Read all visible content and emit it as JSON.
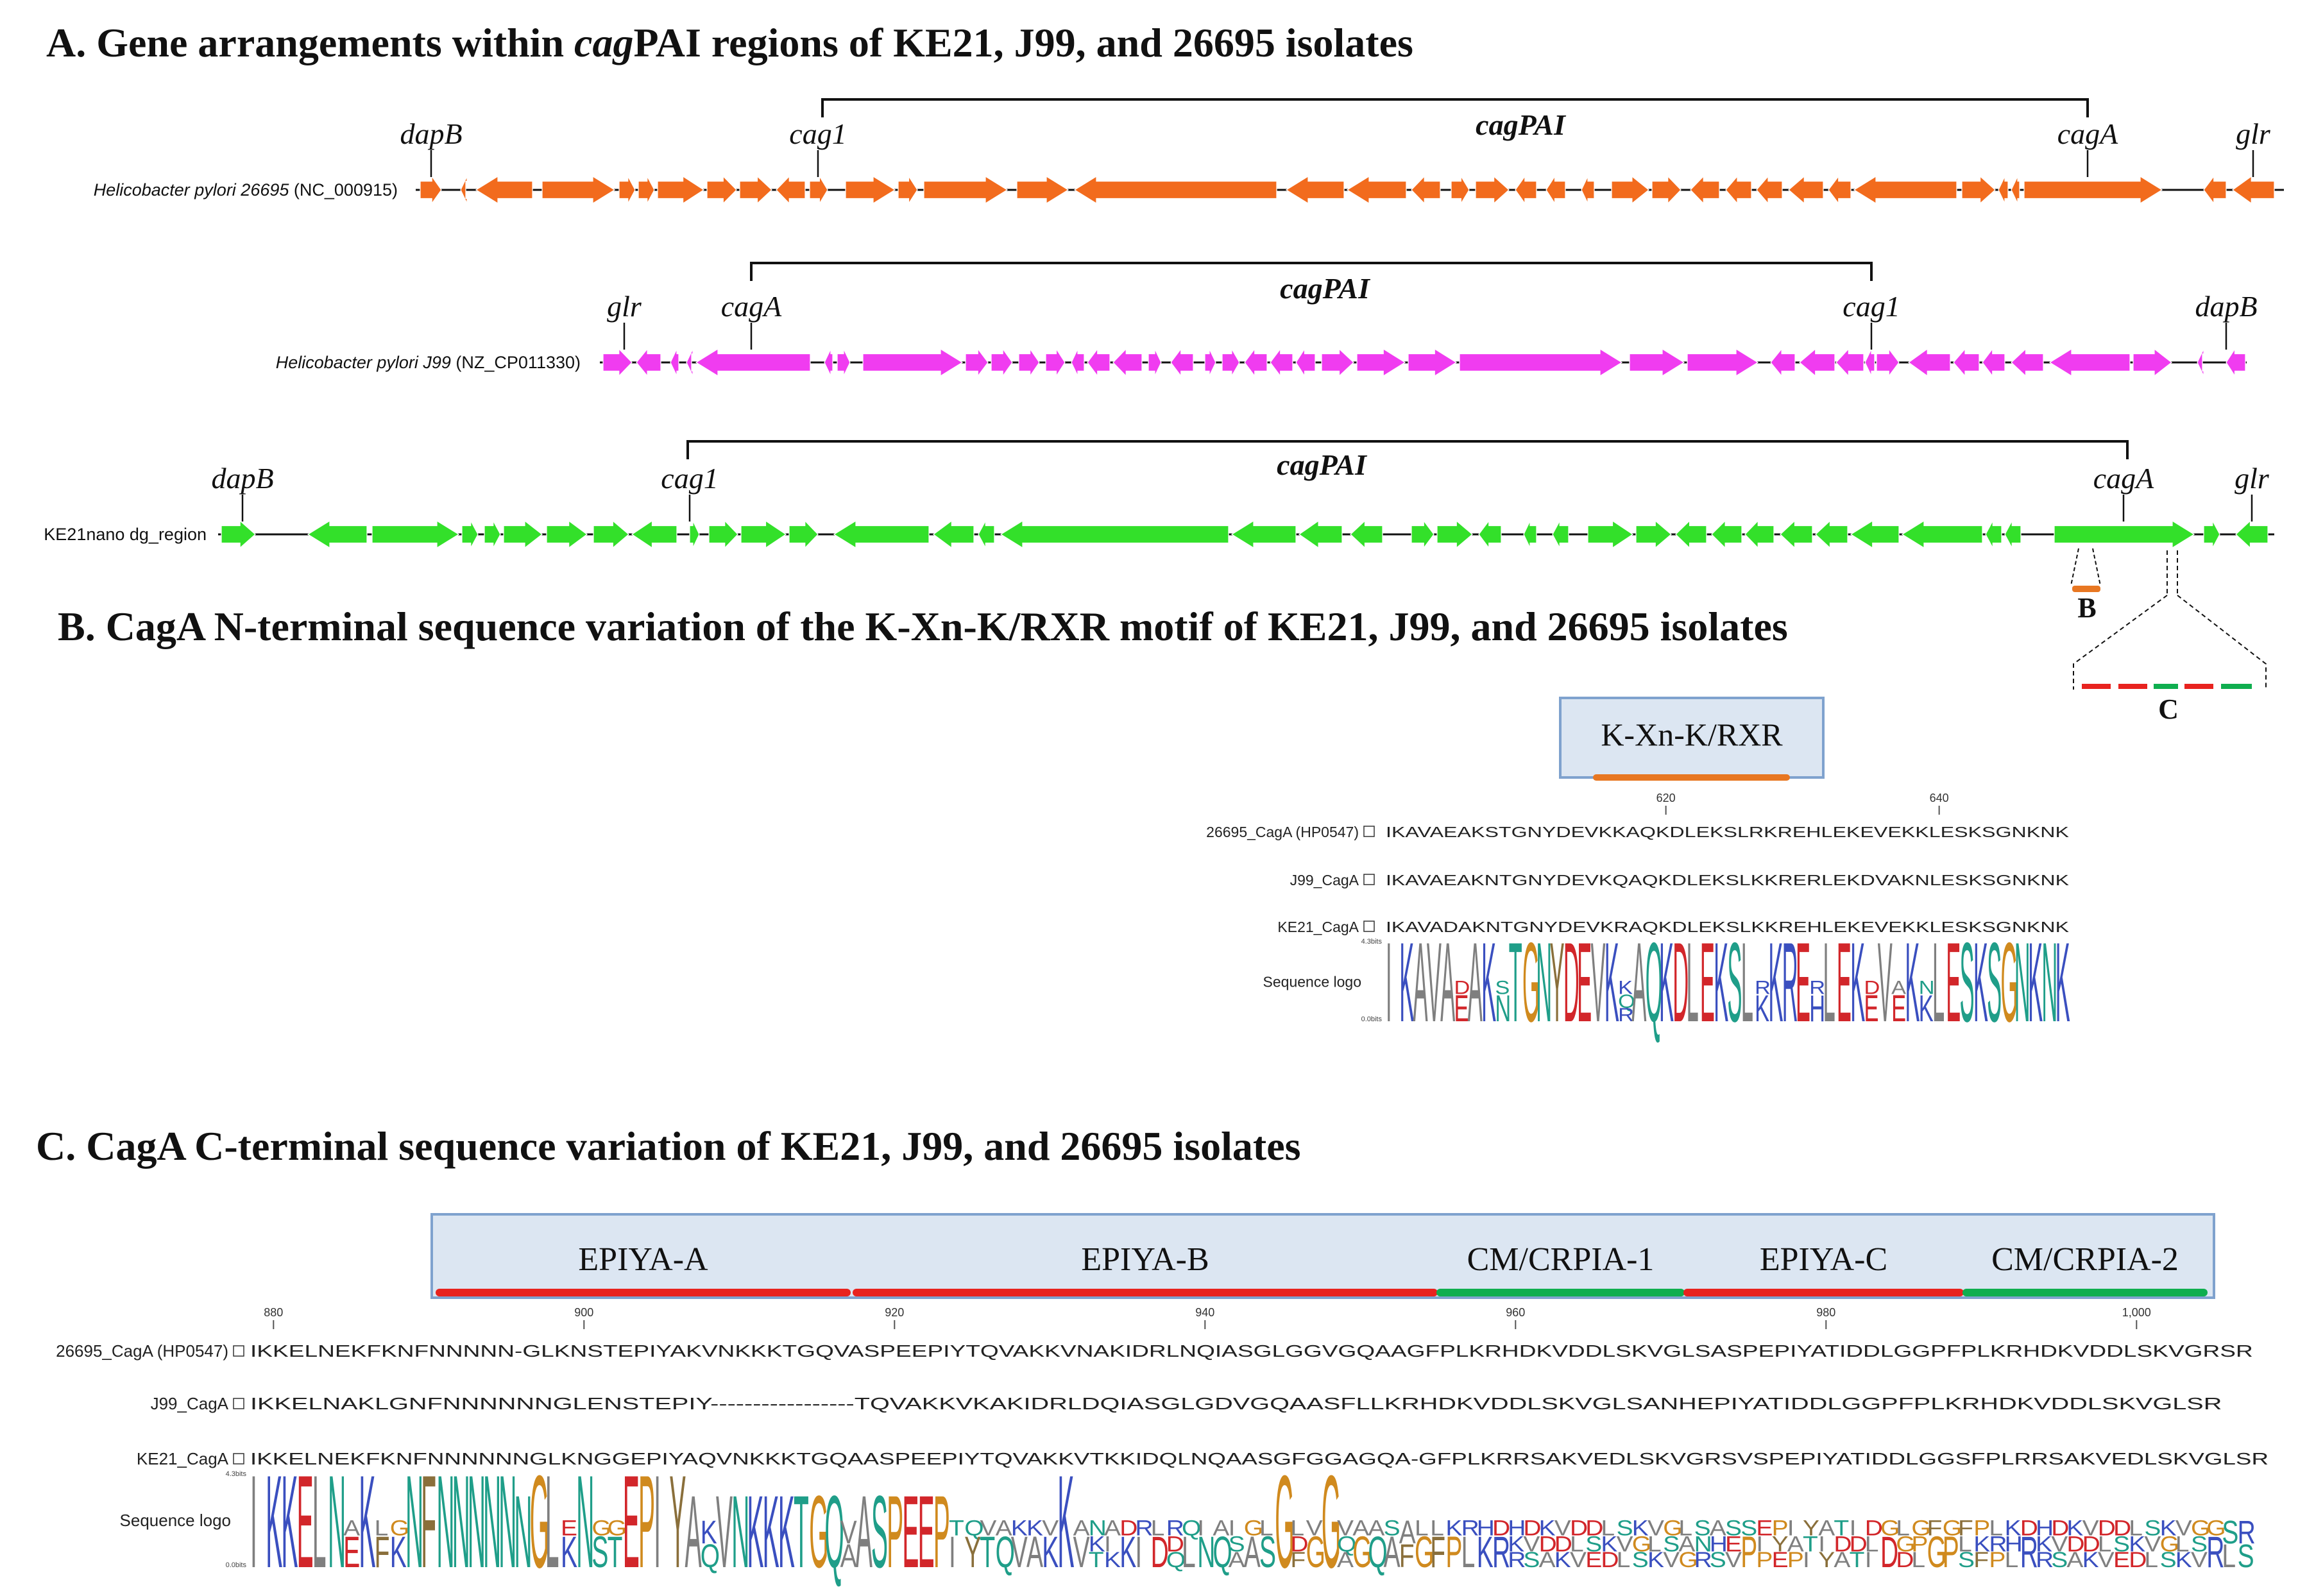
{
  "sectionA": {
    "heading_prefix": "A. Gene arrangements within ",
    "heading_italic": "cag",
    "heading_suffix": "PAI regions of KE21, J99, and 26695 isolates",
    "region_label": "cagPAI",
    "tracks": [
      {
        "genome_italic": "Helicobacter pylori 26695",
        "genome_id": "(NC_000915)",
        "color": "#F26B1D",
        "gene_labels": [
          "dapB",
          "cag1",
          "cagA",
          "glr"
        ]
      },
      {
        "genome_italic": "Helicobacter pylori J99",
        "genome_id": "(NZ_CP011330)",
        "color": "#F03CF0",
        "gene_labels": [
          "glr",
          "cagA",
          "cag1",
          "dapB"
        ]
      },
      {
        "genome_plain": "KE21nano dg_region",
        "color": "#33E02A",
        "gene_labels": [
          "dapB",
          "cag1",
          "cagA",
          "glr"
        ]
      }
    ],
    "zoom_labels": [
      "B",
      "C"
    ],
    "colors": {
      "red": "#E8231F",
      "green": "#0FAE4F",
      "orange": "#E87722"
    }
  },
  "sectionB": {
    "heading": "B. CagA N-terminal sequence variation of the K-Xn-K/RXR motif of KE21, J99, and 26695 isolates",
    "motif_label": "K-Xn-K/RXR",
    "ticks": [
      {
        "label": "620",
        "residue": 620
      },
      {
        "label": "640",
        "residue": 640
      }
    ],
    "rows": [
      {
        "name": "26695_CagA (HP0547)",
        "seq": "IKAVAEAKSTGNYDEVKKAQKDLEKSLRKREHLEKEVEKKLESKSGNKNK"
      },
      {
        "name": "J99_CagA",
        "seq": "IKAVAEAKNTGNYDEVKQAQKDLEKSLKKRERLEKDVAKNLESKSGNKNK"
      },
      {
        "name": "KE21_CagA",
        "seq": "IKAVADAKNTGNYDEVKRAQKDLEKSLKKREHLEKEVEKKLESKSGNKNK"
      }
    ],
    "logo_label": "Sequence logo",
    "logo_top": "4.3bits",
    "logo_bottom": "0.0bits"
  },
  "sectionC": {
    "heading": "C. CagA C-terminal sequence variation of KE21, J99, and 26695 isolates",
    "motifs": [
      {
        "label": "EPIYA-A",
        "color": "red"
      },
      {
        "label": "EPIYA-B",
        "color": "red"
      },
      {
        "label": "CM/CRPIA-1",
        "color": "green"
      },
      {
        "label": "EPIYA-C",
        "color": "red"
      },
      {
        "label": "CM/CRPIA-2",
        "color": "green"
      }
    ],
    "ticks": [
      {
        "label": "880",
        "residue": 880
      },
      {
        "label": "900",
        "residue": 900
      },
      {
        "label": "920",
        "residue": 920
      },
      {
        "label": "940",
        "residue": 940
      },
      {
        "label": "960",
        "residue": 960
      },
      {
        "label": "980",
        "residue": 980
      },
      {
        "label": "1,000",
        "residue": 1000
      }
    ],
    "rows": [
      {
        "name": "26695_CagA (HP0547)",
        "seq": "IKKELNEKFKNFNNNNN-GLKNSTEPIYAKVNKKKTGQVASPEEPIYTQVAKKVNAKIDRLNQIASGLGGVGQAAGFPLKRHDKVDDLSKVGLSASPEPIYATIDDLGGPFPLKRHDKVDDLSKVGRSR"
      },
      {
        "name": "J99_CagA",
        "seq": "IKKELNAKLGNFNNNNNNGLENSTEPIY-----------------TQVAKKVKAKIDRLDQIASGLGDVGQAASFLLKRHDKVDDLSKVGLSANHEPIYATIDDLGGPFPLKRHDKVDDLSKVGLSR"
      },
      {
        "name": "KE21_CagA",
        "seq": "IKKELNEKFKNFNNNNNNGLKNGGEPIYAQVNKKKTGQAASPEEPIYTQVAKKVTKKIDQLNQAASGFGGAGQA-GFPLKRRSAKVEDLSKVGRSVSPEPIYATIDDLGGSFPLRRSAKVEDLSKVGLSR"
      }
    ],
    "logo_label": "Sequence logo",
    "logo_top": "4.3bits",
    "logo_bottom": "0.0bits"
  }
}
